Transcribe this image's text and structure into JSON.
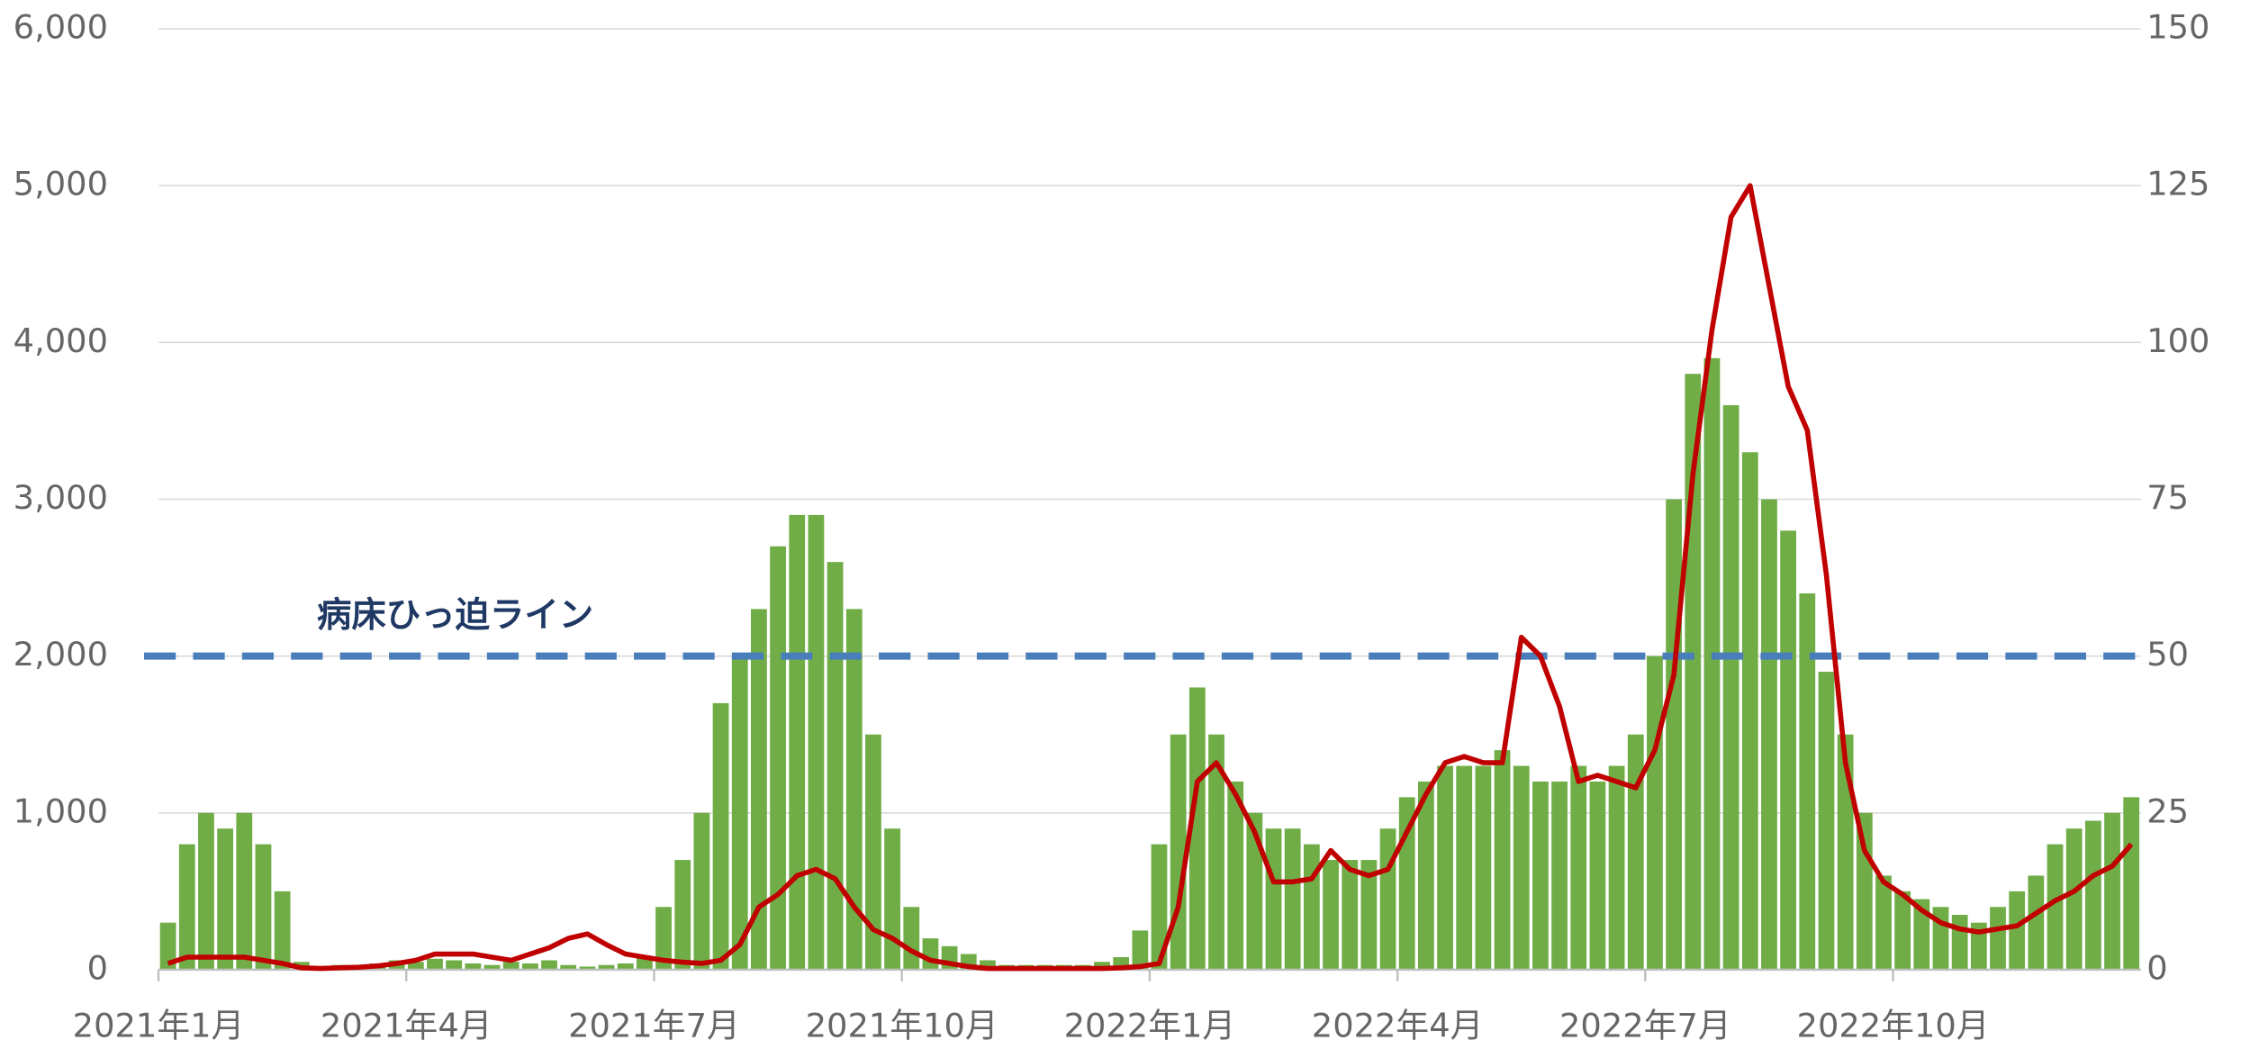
{
  "chart_data": {
    "type": "bar",
    "categories": [
      "2021年1月",
      null,
      null,
      null,
      null,
      null,
      null,
      null,
      null,
      null,
      null,
      null,
      null,
      "2021年4月",
      null,
      null,
      null,
      null,
      null,
      null,
      null,
      null,
      null,
      null,
      null,
      null,
      "2021年7月",
      null,
      null,
      null,
      null,
      null,
      null,
      null,
      null,
      null,
      null,
      null,
      null,
      "2021年10月",
      null,
      null,
      null,
      null,
      null,
      null,
      null,
      null,
      null,
      null,
      null,
      null,
      "2022年1月",
      null,
      null,
      null,
      null,
      null,
      null,
      null,
      null,
      null,
      null,
      null,
      null,
      "2022年4月",
      null,
      null,
      null,
      null,
      null,
      null,
      null,
      null,
      null,
      null,
      null,
      null,
      "2022年7月",
      null,
      null,
      null,
      null,
      null,
      null,
      null,
      null,
      null,
      null,
      null,
      null,
      "2022年10月",
      null,
      null,
      null,
      null,
      null,
      null,
      null,
      null,
      null,
      null,
      null,
      null
    ],
    "series": [
      {
        "type": "bar",
        "color": "#70ad47",
        "values": [
          300,
          800,
          1000,
          900,
          1000,
          800,
          500,
          50,
          20,
          30,
          20,
          40,
          60,
          50,
          70,
          60,
          40,
          30,
          50,
          40,
          60,
          30,
          20,
          30,
          40,
          80,
          400,
          700,
          1000,
          1700,
          2000,
          2300,
          2700,
          2900,
          2900,
          2600,
          2300,
          1500,
          900,
          400,
          200,
          150,
          100,
          60,
          30,
          30,
          30,
          30,
          30,
          50,
          80,
          250,
          800,
          1500,
          1800,
          1500,
          1200,
          1000,
          900,
          900,
          800,
          700,
          700,
          700,
          900,
          1100,
          1200,
          1300,
          1300,
          1300,
          1400,
          1300,
          1200,
          1200,
          1300,
          1200,
          1300,
          1500,
          2000,
          3000,
          3800,
          3900,
          3600,
          3300,
          3000,
          2800,
          2400,
          1900,
          1500,
          1000,
          600,
          500,
          450,
          400,
          350,
          300,
          400,
          500,
          600,
          800,
          900,
          950,
          1000,
          1100
        ]
      },
      {
        "type": "line",
        "axis": "y2",
        "color": "#c00000",
        "values": [
          1,
          2,
          2,
          2,
          2,
          1.5,
          1,
          0.3,
          0.2,
          0.3,
          0.4,
          0.6,
          1,
          1.5,
          2.5,
          2.5,
          2.5,
          2,
          1.5,
          2.5,
          3.5,
          5,
          5.7,
          4,
          2.5,
          2,
          1.5,
          1.2,
          1,
          1.5,
          4,
          10,
          12,
          15,
          16,
          14.5,
          10,
          6.4,
          5,
          3,
          1.5,
          1,
          0.5,
          0.2,
          0.2,
          0.2,
          0.2,
          0.2,
          0.2,
          0.2,
          0.3,
          0.5,
          1,
          10,
          30,
          33,
          28,
          22,
          14,
          14,
          14.5,
          19,
          16,
          15,
          16,
          22,
          28,
          33,
          34,
          33,
          33,
          53,
          50,
          42,
          30,
          31,
          30,
          29,
          35,
          47,
          79,
          102,
          120,
          125,
          109,
          93,
          86,
          63,
          33,
          19,
          14,
          12,
          9.5,
          7.5,
          6.5,
          6,
          6.5,
          7,
          9,
          11,
          12.5,
          15,
          16.5,
          20
        ]
      }
    ],
    "reference_line": {
      "value": 2000,
      "label": "病床ひっ迫ライン",
      "color": "#4a7ebb"
    },
    "ylim": [
      0,
      6000
    ],
    "yticks": [
      0,
      {
        "value": 1000,
        "label": "1,000"
      },
      {
        "value": 2000,
        "label": "2,000"
      },
      {
        "value": 3000,
        "label": "3,000"
      },
      {
        "value": 4000,
        "label": "4,000"
      },
      {
        "value": 5000,
        "label": "5,000"
      },
      {
        "value": 6000,
        "label": "6,000"
      }
    ],
    "y2lim": [
      0,
      150
    ],
    "y2ticks": [
      0,
      25,
      50,
      75,
      100,
      125,
      150
    ],
    "grid": true
  }
}
